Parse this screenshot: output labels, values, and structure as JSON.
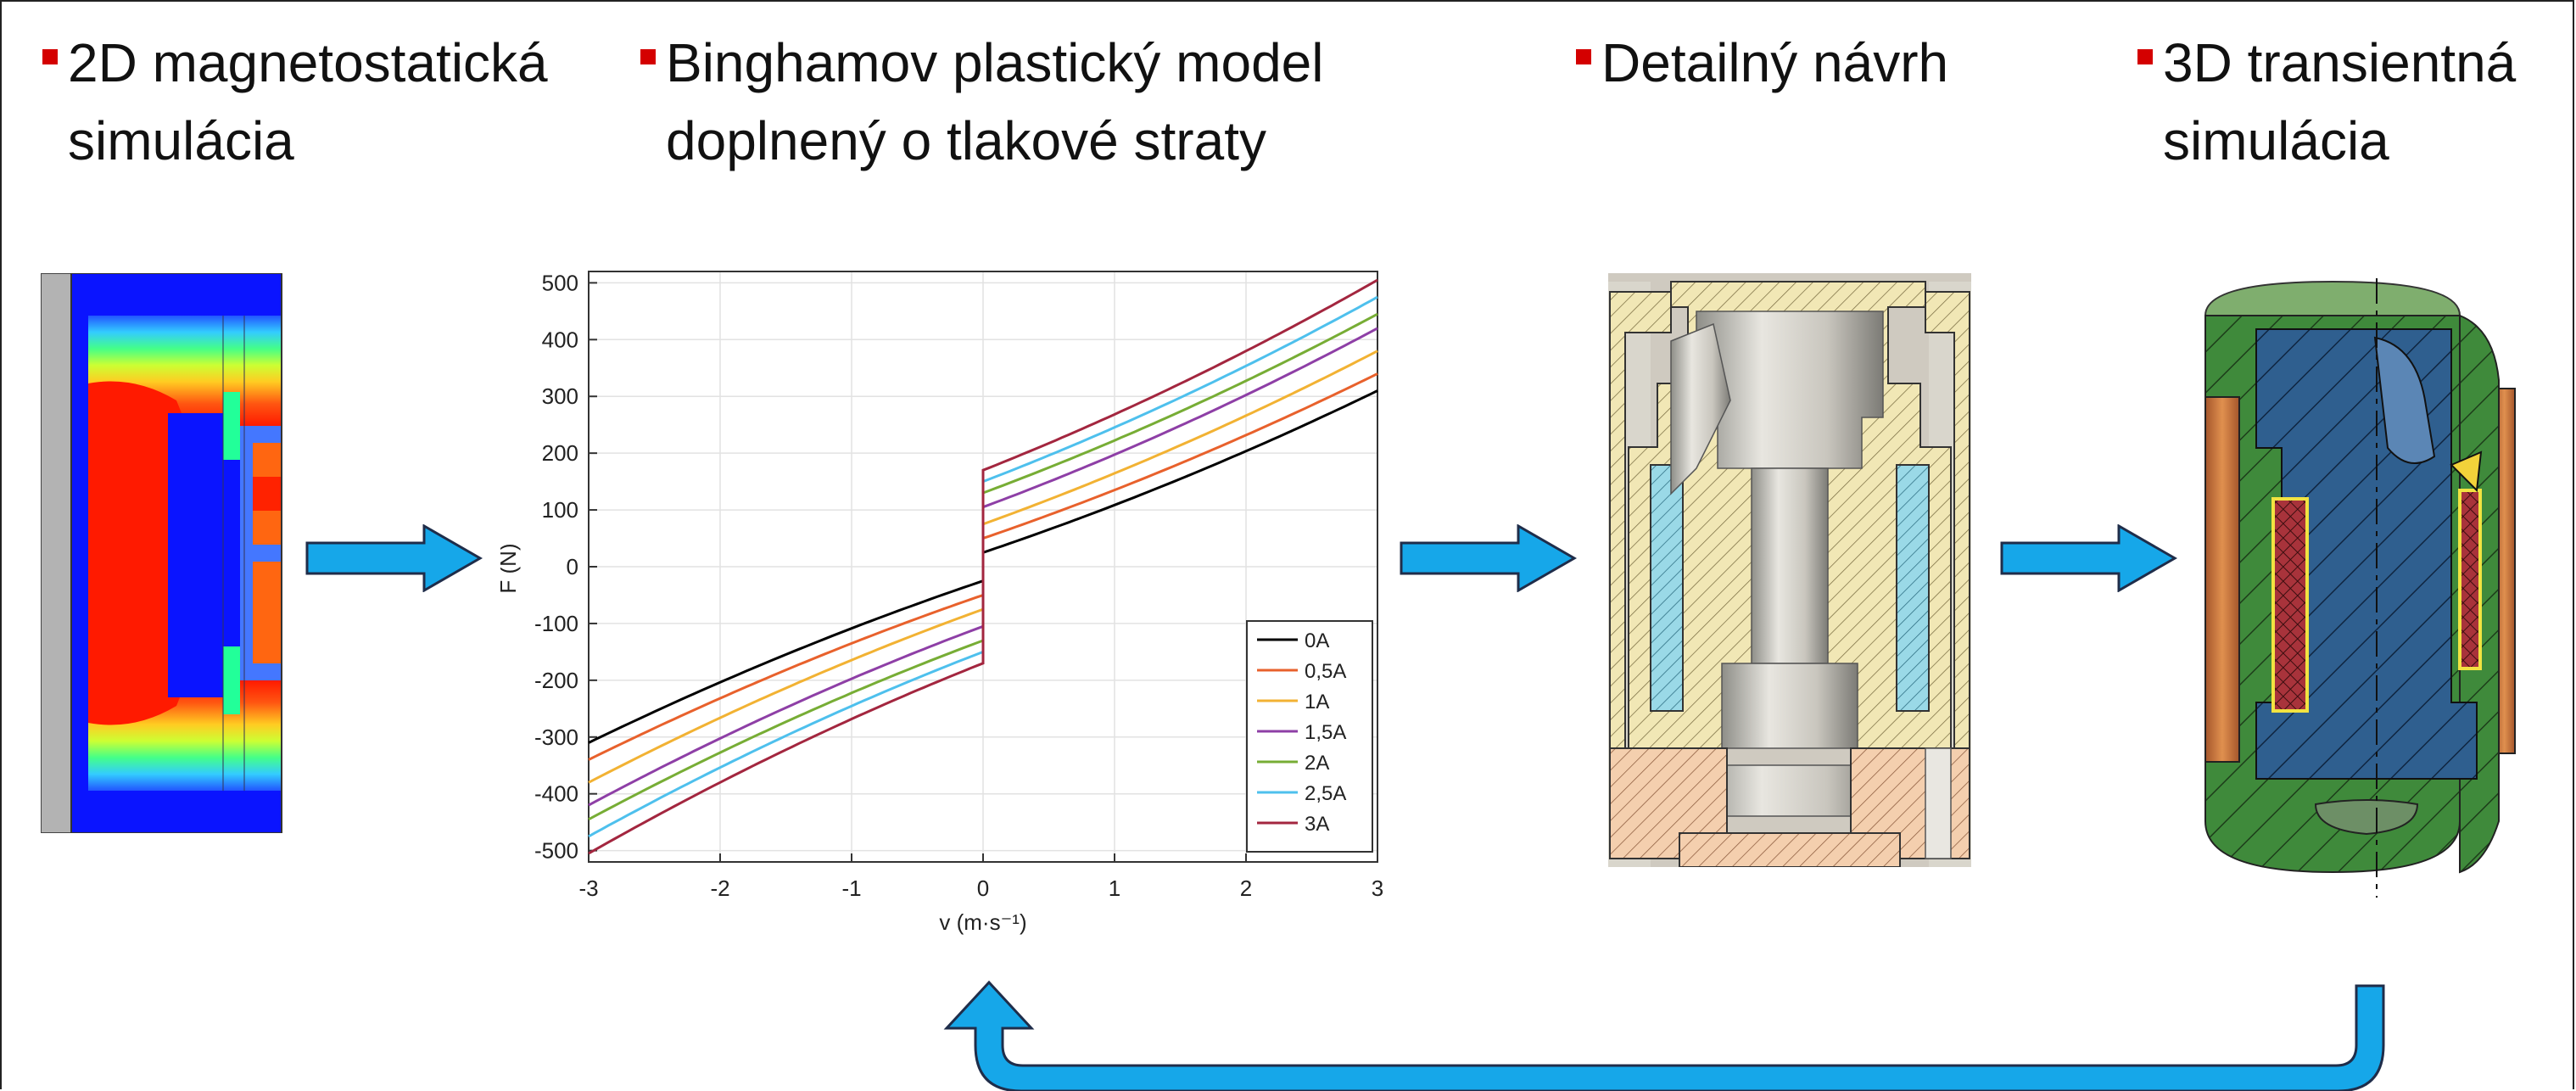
{
  "colors": {
    "accent_arrow": "#16a7e9",
    "arrow_stroke": "#1f2d4a",
    "bullet": "#d40000"
  },
  "steps": [
    {
      "line1": "2D magnetostatická",
      "line2": "simulácia"
    },
    {
      "line1": "Binghamov plastický model",
      "line2": "doplnený o tlakové straty"
    },
    {
      "line1": "Detailný návrh",
      "line2": ""
    },
    {
      "line1": "3D transientná",
      "line2": "simulácia"
    }
  ],
  "chart_data": {
    "type": "line",
    "xlabel": "v (m·s⁻¹)",
    "ylabel": "F (N)",
    "xlim": [
      -3,
      3
    ],
    "ylim": [
      -520,
      520
    ],
    "x_ticks": [
      "-3",
      "-2",
      "-1",
      "0",
      "1",
      "2",
      "3"
    ],
    "y_ticks": [
      "500",
      "400",
      "300",
      "200",
      "100",
      "0",
      "-100",
      "-200",
      "-300",
      "-400",
      "-500"
    ],
    "grid": true,
    "legend_position": "bottom-right",
    "series": [
      {
        "name": "0A",
        "color": "#000000",
        "y_at_0": 25,
        "y_at_3": 310
      },
      {
        "name": "0,5A",
        "color": "#e8612c",
        "y_at_0": 50,
        "y_at_3": 340
      },
      {
        "name": "1A",
        "color": "#f2b233",
        "y_at_0": 75,
        "y_at_3": 380
      },
      {
        "name": "1,5A",
        "color": "#8e3fa6",
        "y_at_0": 105,
        "y_at_3": 420
      },
      {
        "name": "2A",
        "color": "#77ad35",
        "y_at_0": 130,
        "y_at_3": 445
      },
      {
        "name": "2,5A",
        "color": "#4ec0ed",
        "y_at_0": 150,
        "y_at_3": 475
      },
      {
        "name": "3A",
        "color": "#a3263f",
        "y_at_0": 170,
        "y_at_3": 505
      }
    ]
  }
}
